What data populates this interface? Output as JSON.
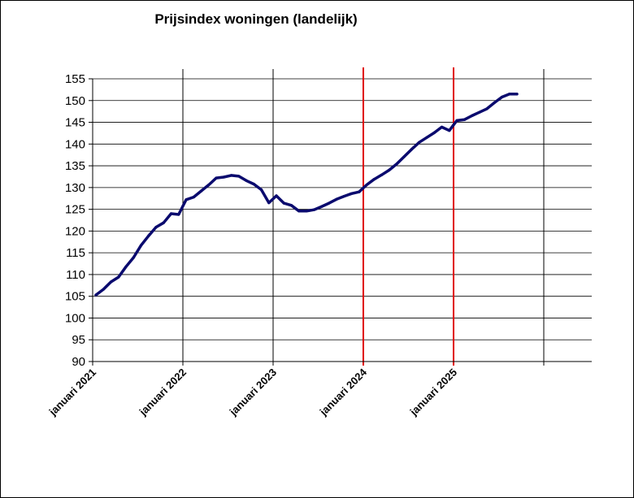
{
  "chart_data": {
    "type": "line",
    "title": "Prijsindex woningen (landelijk)",
    "xlabel": "",
    "ylabel": "",
    "ylim": [
      90,
      155
    ],
    "yticks": [
      90,
      95,
      100,
      105,
      110,
      115,
      120,
      125,
      130,
      135,
      140,
      145,
      150,
      155
    ],
    "xticks": [
      "januari 2021",
      "januari 2022",
      "januari 2023",
      "januari 2024",
      "januari 2025"
    ],
    "grid": "horizontal gridlines plus vertical year lines; 2024 and 2025 lines red",
    "colors": {
      "series": "#0a0a6e",
      "highlight_line": "#e00000",
      "grid": "#000000"
    },
    "series": [
      {
        "values": [
          105.3,
          106.6,
          108.3,
          109.4,
          111.8,
          113.9,
          116.7,
          118.9,
          120.9,
          121.9,
          124.0,
          123.8,
          127.2,
          127.8,
          129.2,
          130.6,
          132.2,
          132.4,
          132.8,
          132.6,
          131.6,
          130.8,
          129.5,
          126.5,
          128.1,
          126.4,
          125.9,
          124.6,
          124.6,
          124.9,
          125.6,
          126.4,
          127.3,
          128.0,
          128.6,
          129.0,
          130.6,
          131.9,
          132.9,
          134.0,
          135.4,
          137.1,
          138.8,
          140.4,
          141.5,
          142.6,
          143.9,
          143.1,
          145.4,
          145.6,
          146.5,
          147.3,
          148.1,
          149.5,
          150.8,
          151.5,
          151.5
        ]
      }
    ]
  }
}
